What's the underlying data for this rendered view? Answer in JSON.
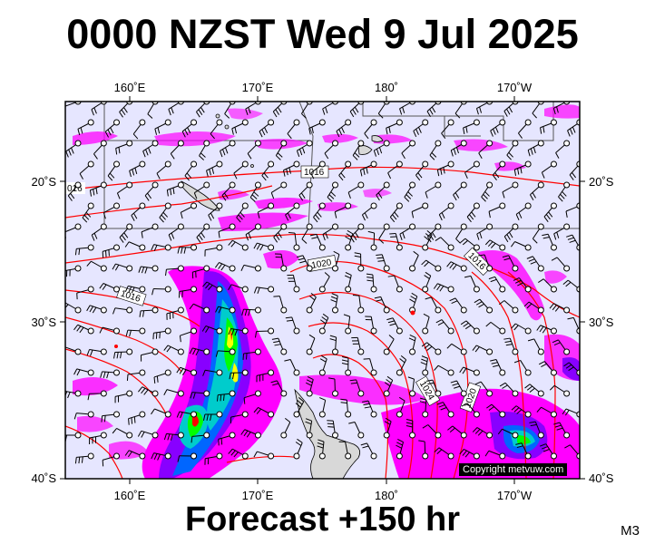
{
  "title": "0000 NZST Wed 9 Jul 2025",
  "subtitle": "Forecast +150 hr",
  "model_tag": "M3",
  "copyright": "Copyright metvuw.com",
  "map": {
    "top_lon_labels": [
      "160˚E",
      "170˚E",
      "180˚",
      "170˚W"
    ],
    "bottom_lon_labels": [
      "160˚E",
      "170˚E",
      "180˚",
      "170˚W"
    ],
    "left_lat_labels": [
      "20˚S",
      "30˚S",
      "40˚S"
    ],
    "right_lat_labels": [
      "20˚S",
      "30˚S",
      "40˚S"
    ],
    "isobar_labels": [
      "1016",
      "016",
      "1016",
      "1020",
      "1016",
      "1024",
      "1020"
    ],
    "colors": {
      "ocean": "#e6e6ff",
      "isobar": "#ff0000",
      "precip_light": "#ff00ff",
      "precip_med": "#8800ff",
      "precip_heavy_blue": "#0066ff",
      "precip_cyan": "#00cccc",
      "precip_green": "#00ff00",
      "precip_yellow": "#ffff00",
      "precip_red": "#ff0000",
      "land": "#d8d8d8"
    }
  }
}
